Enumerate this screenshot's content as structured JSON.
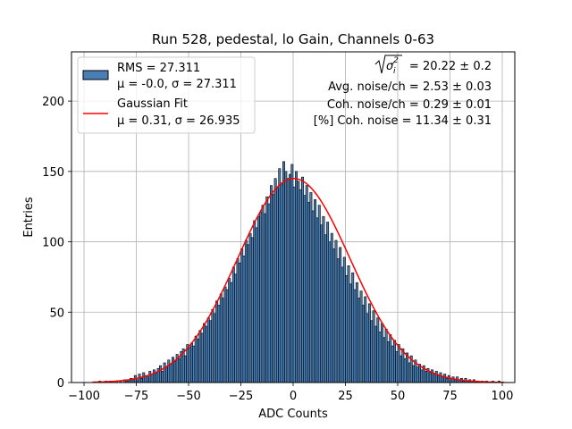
{
  "chart_data": {
    "type": "bar",
    "title": "Run 528, pedestal, lo Gain, Channels 0-63",
    "xlabel": "ADC Counts",
    "ylabel": "Entries",
    "xlim": [
      -106,
      106
    ],
    "ylim": [
      0,
      235
    ],
    "xticks": [
      -100,
      -75,
      -50,
      -25,
      0,
      25,
      50,
      75,
      100
    ],
    "yticks": [
      0,
      50,
      100,
      150,
      200
    ],
    "grid": true,
    "legend_position": "top-left",
    "histogram": {
      "name": "RMS = 27.311",
      "name_line2": "μ = -0.0, σ = 27.311",
      "bin_width": 1,
      "bin_start": -95,
      "color": "#4a7fb5",
      "edgecolor": "#000000",
      "counts": [
        0,
        0,
        1,
        0,
        0,
        1,
        0,
        1,
        0,
        0,
        1,
        0,
        1,
        0,
        2,
        1,
        2,
        3,
        2,
        5,
        2,
        6,
        3,
        7,
        5,
        4,
        8,
        6,
        9,
        7,
        10,
        12,
        8,
        14,
        11,
        16,
        13,
        18,
        15,
        20,
        17,
        22,
        24,
        19,
        27,
        25,
        28,
        26,
        33,
        31,
        37,
        35,
        42,
        40,
        46,
        44,
        52,
        49,
        58,
        55,
        63,
        60,
        68,
        66,
        74,
        71,
        82,
        77,
        88,
        85,
        95,
        90,
        101,
        98,
        106,
        103,
        115,
        110,
        118,
        121,
        126,
        120,
        132,
        127,
        140,
        134,
        145,
        138,
        152,
        141,
        157,
        150,
        145,
        148,
        155,
        139,
        150,
        143,
        137,
        146,
        133,
        140,
        128,
        135,
        122,
        130,
        117,
        126,
        112,
        118,
        105,
        114,
        100,
        106,
        95,
        101,
        88,
        96,
        82,
        89,
        76,
        83,
        70,
        78,
        66,
        71,
        60,
        65,
        55,
        61,
        49,
        56,
        44,
        51,
        40,
        46,
        36,
        42,
        32,
        38,
        29,
        34,
        26,
        30,
        22,
        27,
        19,
        24,
        17,
        21,
        14,
        19,
        12,
        16,
        11,
        13,
        9,
        12,
        8,
        10,
        7,
        9,
        6,
        8,
        5,
        7,
        4,
        6,
        3,
        5,
        3,
        4,
        2,
        4,
        2,
        3,
        1,
        3,
        1,
        2,
        1,
        2,
        1,
        1,
        0,
        1,
        0,
        1,
        0,
        0,
        1,
        0,
        0,
        1,
        0,
        0
      ]
    },
    "fit": {
      "name": "Gaussian Fit",
      "name_line2": "μ = 0.31, σ = 26.935",
      "mu": 0.31,
      "sigma": 26.935,
      "amplitude": 145,
      "color": "#ff0000"
    },
    "annotations": {
      "line1_suffix": " = 20.22 ± 0.2",
      "line2": "Avg. noise/ch = 2.53 ± 0.03",
      "line3": "Coh. noise/ch = 0.29 ± 0.01",
      "line4": "[%] Coh. noise = 11.34 ± 0.31"
    }
  }
}
